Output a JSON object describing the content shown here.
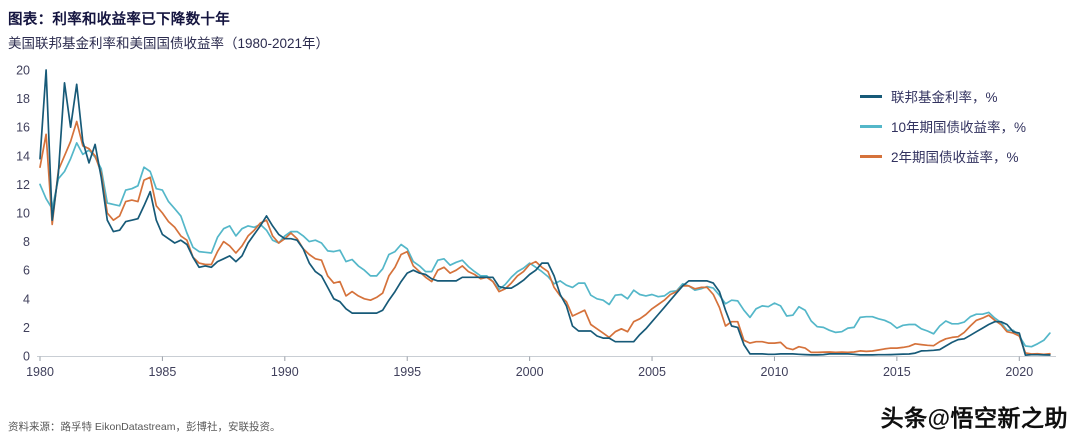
{
  "footer": {
    "source": "资料来源：路孚特 EikonDatastream，彭博社，安联投资。",
    "watermark": "头条@悟空新之助"
  },
  "chart_data": {
    "type": "line",
    "title": "图表：利率和收益率已下降数十年",
    "subtitle": "美国联邦基金利率和美国国债收益率（1980-2021年）",
    "xlabel": "",
    "ylabel": "",
    "xlim": [
      1980,
      2021.5
    ],
    "ylim": [
      0,
      20
    ],
    "x_ticks": [
      1980,
      1985,
      1990,
      1995,
      2000,
      2005,
      2010,
      2015,
      2020
    ],
    "y_ticks": [
      0,
      2,
      4,
      6,
      8,
      10,
      12,
      14,
      16,
      18,
      20
    ],
    "grid": false,
    "legend_position": "top-right",
    "x_start": 1980,
    "x_step": 0.25,
    "series": [
      {
        "name": "联邦基金利率，%",
        "color": "#175a78",
        "values": [
          13.8,
          20.0,
          9.5,
          12.8,
          19.1,
          16.0,
          19.0,
          15.0,
          13.5,
          14.8,
          12.5,
          9.5,
          8.7,
          8.8,
          9.4,
          9.5,
          9.6,
          10.5,
          11.5,
          9.5,
          8.5,
          8.2,
          7.9,
          8.1,
          7.8,
          6.9,
          6.2,
          6.3,
          6.2,
          6.6,
          6.8,
          7.0,
          6.6,
          7.0,
          7.9,
          8.5,
          9.1,
          9.8,
          9.1,
          8.5,
          8.2,
          8.2,
          8.1,
          7.5,
          6.5,
          5.9,
          5.6,
          4.8,
          4.0,
          3.8,
          3.3,
          3.0,
          3.0,
          3.0,
          3.0,
          3.0,
          3.2,
          3.9,
          4.5,
          5.2,
          5.8,
          6.0,
          5.8,
          5.7,
          5.4,
          5.25,
          5.25,
          5.25,
          5.25,
          5.5,
          5.5,
          5.5,
          5.5,
          5.5,
          5.5,
          4.85,
          4.75,
          4.75,
          5.0,
          5.3,
          5.7,
          6.0,
          6.5,
          6.5,
          5.6,
          4.3,
          3.5,
          2.1,
          1.75,
          1.75,
          1.75,
          1.4,
          1.25,
          1.25,
          1.0,
          1.0,
          1.0,
          1.0,
          1.5,
          1.9,
          2.4,
          2.9,
          3.4,
          3.9,
          4.4,
          4.9,
          5.25,
          5.25,
          5.25,
          5.25,
          5.1,
          4.5,
          3.2,
          2.1,
          2.0,
          0.8,
          0.15,
          0.15,
          0.15,
          0.12,
          0.12,
          0.15,
          0.15,
          0.15,
          0.12,
          0.1,
          0.08,
          0.08,
          0.1,
          0.15,
          0.15,
          0.15,
          0.15,
          0.12,
          0.08,
          0.08,
          0.08,
          0.09,
          0.09,
          0.1,
          0.11,
          0.13,
          0.14,
          0.2,
          0.36,
          0.37,
          0.4,
          0.45,
          0.7,
          0.95,
          1.15,
          1.2,
          1.45,
          1.7,
          1.95,
          2.2,
          2.4,
          2.4,
          2.2,
          1.7,
          1.6,
          0.06,
          0.09,
          0.09,
          0.08,
          0.07
        ]
      },
      {
        "name": "10年期国债收益率，%",
        "color": "#54b7c9",
        "values": [
          12.0,
          11.0,
          10.3,
          12.4,
          12.9,
          13.8,
          14.9,
          14.1,
          14.4,
          13.9,
          13.1,
          10.7,
          10.6,
          10.5,
          11.6,
          11.7,
          11.9,
          13.2,
          12.9,
          11.7,
          11.6,
          10.8,
          10.3,
          9.8,
          8.6,
          7.6,
          7.3,
          7.25,
          7.2,
          8.3,
          8.9,
          9.1,
          8.4,
          8.9,
          9.1,
          9.0,
          9.2,
          8.8,
          8.1,
          7.9,
          8.4,
          8.7,
          8.7,
          8.4,
          8.0,
          8.1,
          7.9,
          7.35,
          7.3,
          7.4,
          6.6,
          6.75,
          6.3,
          6.0,
          5.6,
          5.6,
          6.1,
          7.1,
          7.3,
          7.8,
          7.5,
          6.6,
          6.3,
          5.9,
          5.9,
          6.7,
          6.8,
          6.35,
          6.55,
          6.7,
          6.25,
          5.9,
          5.6,
          5.6,
          5.2,
          4.65,
          5.0,
          5.5,
          5.9,
          6.15,
          6.5,
          6.2,
          5.9,
          5.55,
          5.05,
          5.25,
          4.95,
          4.8,
          5.1,
          5.1,
          4.25,
          4.0,
          3.9,
          3.6,
          4.25,
          4.3,
          4.0,
          4.6,
          4.3,
          4.2,
          4.3,
          4.15,
          4.2,
          4.5,
          4.55,
          5.05,
          4.9,
          4.6,
          4.7,
          4.85,
          4.75,
          4.25,
          3.65,
          3.9,
          3.85,
          3.2,
          2.7,
          3.3,
          3.5,
          3.45,
          3.7,
          3.5,
          2.8,
          2.85,
          3.45,
          3.2,
          2.45,
          2.05,
          2.0,
          1.8,
          1.65,
          1.7,
          1.95,
          2.0,
          2.7,
          2.75,
          2.75,
          2.6,
          2.5,
          2.3,
          1.95,
          2.15,
          2.2,
          2.2,
          1.9,
          1.75,
          1.55,
          2.1,
          2.45,
          2.25,
          2.25,
          2.37,
          2.75,
          2.92,
          2.92,
          3.05,
          2.65,
          2.35,
          1.8,
          1.8,
          1.4,
          0.7,
          0.65,
          0.85,
          1.1,
          1.6
        ]
      },
      {
        "name": "2年期国债收益率，%",
        "color": "#d5723b",
        "values": [
          13.2,
          15.5,
          9.2,
          13.0,
          14.0,
          15.0,
          16.4,
          14.7,
          14.5,
          14.0,
          12.8,
          10.0,
          9.5,
          9.8,
          10.8,
          10.9,
          10.8,
          12.3,
          12.5,
          10.5,
          10.0,
          9.4,
          9.0,
          8.4,
          8.1,
          6.9,
          6.5,
          6.4,
          6.4,
          7.3,
          8.0,
          7.7,
          7.2,
          7.7,
          8.4,
          8.8,
          9.3,
          9.5,
          8.4,
          7.9,
          8.2,
          8.6,
          8.2,
          7.5,
          7.1,
          6.8,
          6.7,
          5.6,
          5.1,
          5.2,
          4.2,
          4.5,
          4.2,
          4.0,
          3.9,
          4.1,
          4.4,
          5.6,
          6.2,
          7.1,
          7.3,
          6.3,
          5.9,
          5.5,
          5.2,
          6.0,
          6.2,
          5.8,
          6.0,
          6.3,
          5.9,
          5.7,
          5.4,
          5.5,
          5.2,
          4.5,
          4.7,
          5.1,
          5.6,
          5.9,
          6.4,
          6.6,
          6.2,
          5.9,
          4.8,
          4.2,
          3.8,
          2.8,
          3.0,
          3.2,
          2.2,
          1.9,
          1.6,
          1.3,
          1.7,
          1.9,
          1.7,
          2.4,
          2.6,
          2.9,
          3.3,
          3.6,
          3.9,
          4.3,
          4.5,
          4.9,
          4.9,
          4.7,
          4.8,
          4.8,
          4.3,
          3.4,
          2.1,
          2.4,
          2.4,
          1.1,
          0.9,
          1.0,
          1.0,
          0.9,
          0.9,
          0.95,
          0.55,
          0.45,
          0.65,
          0.55,
          0.25,
          0.25,
          0.27,
          0.28,
          0.26,
          0.27,
          0.26,
          0.28,
          0.36,
          0.32,
          0.35,
          0.42,
          0.5,
          0.55,
          0.55,
          0.6,
          0.68,
          0.85,
          0.8,
          0.75,
          0.72,
          1.0,
          1.2,
          1.3,
          1.35,
          1.65,
          2.1,
          2.5,
          2.65,
          2.85,
          2.5,
          2.2,
          1.7,
          1.6,
          1.4,
          0.22,
          0.14,
          0.16,
          0.12,
          0.16
        ]
      }
    ]
  }
}
